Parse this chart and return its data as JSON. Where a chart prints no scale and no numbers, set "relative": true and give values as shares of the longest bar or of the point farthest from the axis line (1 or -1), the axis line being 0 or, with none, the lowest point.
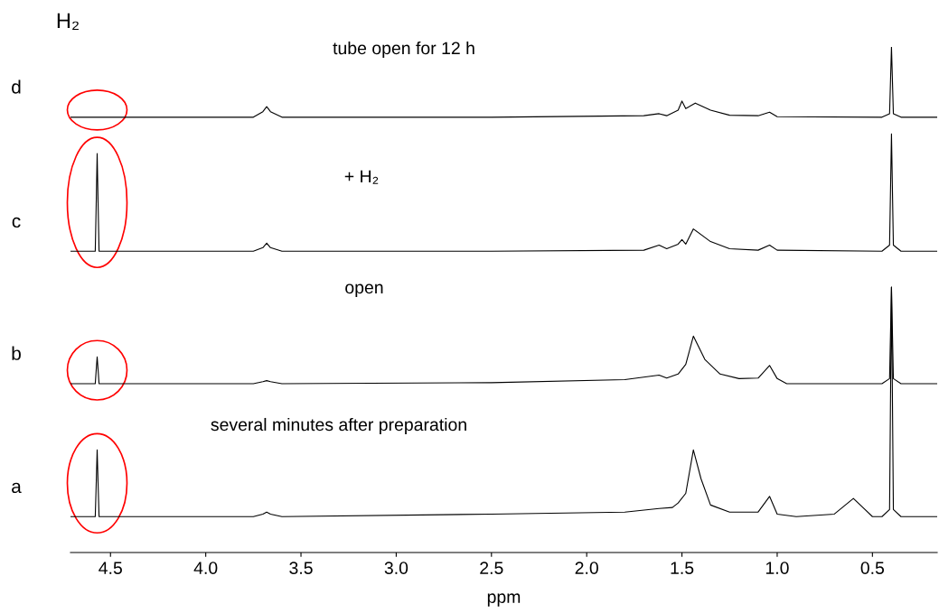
{
  "chart_data": {
    "type": "line",
    "relative": true,
    "xlim": [
      4.71,
      0.16
    ],
    "xticks": [
      4.5,
      {
        "value": 4,
        "label": "4.0"
      },
      3.5,
      {
        "value": 3,
        "label": "3.0"
      },
      2.5,
      {
        "value": 2,
        "label": "2.0"
      },
      1.5,
      {
        "value": 1,
        "label": "1.0"
      },
      0.5
    ],
    "xlabel": "ppm",
    "tick_labels": "x",
    "annotations": [
      "H₂",
      "tube open for 12 h",
      "+ H₂",
      "open",
      "several minutes after preparation"
    ],
    "series": [
      {
        "name": "d",
        "color": "#000000",
        "x": [
          4.71,
          4.6,
          4.5,
          3.75,
          3.7,
          3.68,
          3.66,
          3.6,
          2.5,
          1.7,
          1.62,
          1.58,
          1.52,
          1.5,
          1.48,
          1.43,
          1.35,
          1.25,
          1.1,
          1.04,
          1.0,
          0.45,
          0.41,
          0.4,
          0.39,
          0.35,
          0.16
        ],
        "values": [
          0.861,
          0.861,
          0.861,
          0.861,
          0.872,
          0.882,
          0.872,
          0.861,
          0.861,
          0.864,
          0.868,
          0.864,
          0.875,
          0.893,
          0.878,
          0.889,
          0.875,
          0.865,
          0.864,
          0.871,
          0.862,
          0.861,
          0.868,
          1.0,
          0.868,
          0.861,
          0.861
        ]
      },
      {
        "name": "c",
        "color": "#000000",
        "x": [
          4.71,
          4.58,
          4.575,
          4.57,
          4.565,
          4.56,
          3.75,
          3.7,
          3.68,
          3.66,
          3.6,
          2.5,
          1.7,
          1.62,
          1.58,
          1.52,
          1.5,
          1.48,
          1.44,
          1.35,
          1.25,
          1.1,
          1.04,
          1.0,
          0.45,
          0.41,
          0.4,
          0.39,
          0.35,
          0.16
        ],
        "values": [
          0.596,
          0.596,
          0.689,
          0.789,
          0.689,
          0.596,
          0.596,
          0.603,
          0.612,
          0.603,
          0.596,
          0.596,
          0.598,
          0.608,
          0.601,
          0.61,
          0.619,
          0.61,
          0.64,
          0.615,
          0.601,
          0.598,
          0.608,
          0.598,
          0.596,
          0.608,
          0.828,
          0.608,
          0.596,
          0.596
        ]
      },
      {
        "name": "b",
        "color": "#000000",
        "x": [
          4.71,
          4.58,
          4.575,
          4.57,
          4.565,
          4.56,
          3.75,
          3.7,
          3.68,
          3.66,
          3.6,
          2.5,
          1.8,
          1.62,
          1.58,
          1.52,
          1.48,
          1.44,
          1.38,
          1.3,
          1.2,
          1.1,
          1.04,
          1.0,
          0.95,
          0.45,
          0.41,
          0.4,
          0.39,
          0.35,
          0.16
        ],
        "values": [
          0.334,
          0.334,
          0.361,
          0.387,
          0.361,
          0.334,
          0.334,
          0.338,
          0.34,
          0.338,
          0.334,
          0.336,
          0.342,
          0.351,
          0.345,
          0.353,
          0.372,
          0.428,
          0.382,
          0.353,
          0.344,
          0.345,
          0.37,
          0.344,
          0.334,
          0.334,
          0.344,
          0.525,
          0.344,
          0.334,
          0.334
        ]
      },
      {
        "name": "a",
        "color": "#000000",
        "x": [
          4.71,
          4.58,
          4.575,
          4.57,
          4.565,
          4.56,
          3.75,
          3.7,
          3.68,
          3.66,
          3.6,
          2.5,
          1.8,
          1.62,
          1.55,
          1.52,
          1.48,
          1.44,
          1.4,
          1.35,
          1.25,
          1.1,
          1.04,
          1.0,
          0.9,
          0.7,
          0.6,
          0.55,
          0.5,
          0.45,
          0.41,
          0.4,
          0.39,
          0.35,
          0.16
        ],
        "values": [
          0.071,
          0.071,
          0.135,
          0.203,
          0.135,
          0.071,
          0.071,
          0.076,
          0.08,
          0.076,
          0.071,
          0.076,
          0.08,
          0.087,
          0.089,
          0.098,
          0.117,
          0.203,
          0.146,
          0.094,
          0.08,
          0.08,
          0.111,
          0.076,
          0.071,
          0.076,
          0.107,
          0.089,
          0.071,
          0.071,
          0.085,
          0.525,
          0.085,
          0.071,
          0.071
        ]
      }
    ]
  }
}
